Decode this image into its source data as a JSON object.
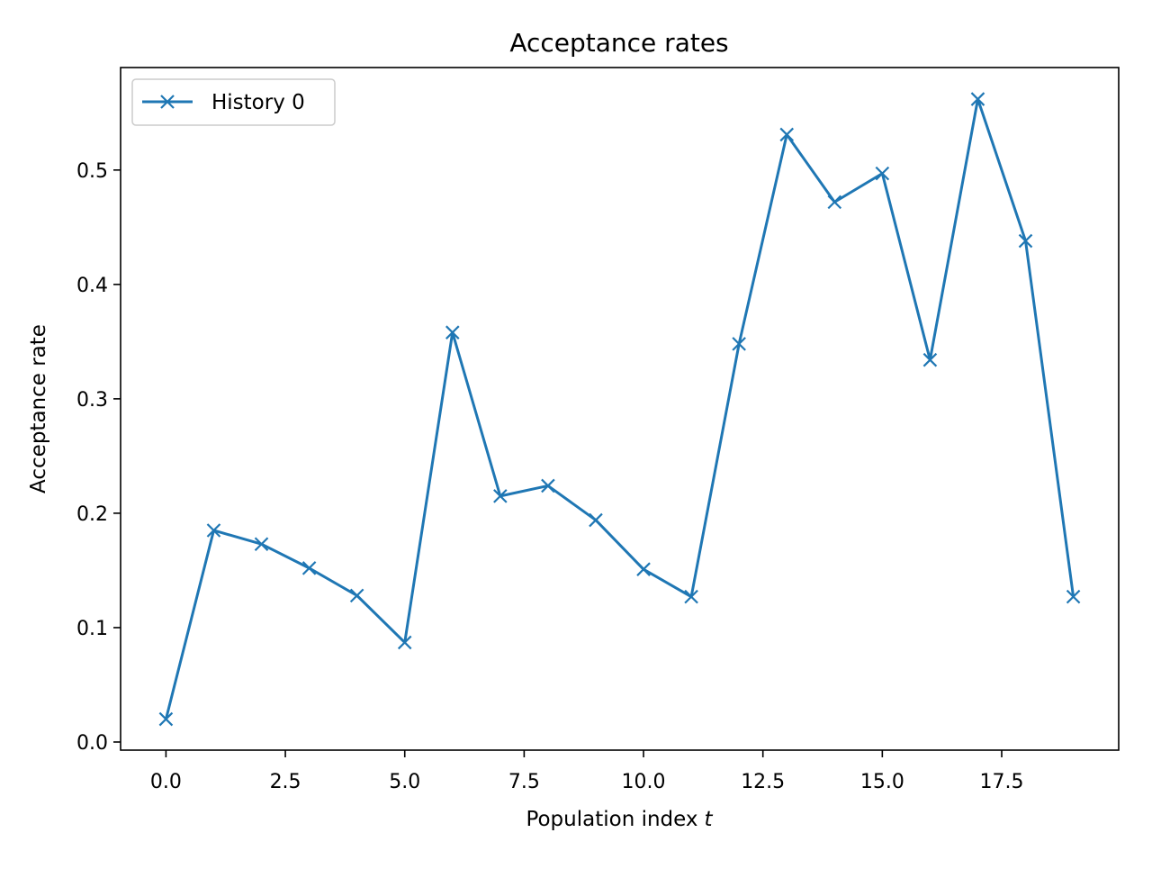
{
  "chart_data": {
    "type": "line",
    "title": "Acceptance rates",
    "xlabel": "Population index",
    "xlabel_var": "t",
    "ylabel": "Acceptance rate",
    "xlim": [
      -0.95,
      19.95
    ],
    "ylim": [
      -0.0071,
      0.5896
    ],
    "x_ticks": [
      0.0,
      2.5,
      5.0,
      7.5,
      10.0,
      12.5,
      15.0,
      17.5
    ],
    "x_tick_labels": [
      "0.0",
      "2.5",
      "5.0",
      "7.5",
      "10.0",
      "12.5",
      "15.0",
      "17.5"
    ],
    "y_ticks": [
      0.0,
      0.1,
      0.2,
      0.3,
      0.4,
      0.5
    ],
    "y_tick_labels": [
      "0.0",
      "0.1",
      "0.2",
      "0.3",
      "0.4",
      "0.5"
    ],
    "grid": false,
    "legend": "upper-left",
    "series": [
      {
        "name": "History 0",
        "color": "#1f77b4",
        "marker": "x",
        "x": [
          0,
          1,
          2,
          3,
          4,
          5,
          6,
          7,
          8,
          9,
          10,
          11,
          12,
          13,
          14,
          15,
          16,
          17,
          18,
          19
        ],
        "values": [
          0.02,
          0.185,
          0.173,
          0.152,
          0.128,
          0.087,
          0.358,
          0.215,
          0.224,
          0.194,
          0.151,
          0.127,
          0.348,
          0.531,
          0.472,
          0.497,
          0.334,
          0.562,
          0.438,
          0.127
        ]
      }
    ]
  }
}
